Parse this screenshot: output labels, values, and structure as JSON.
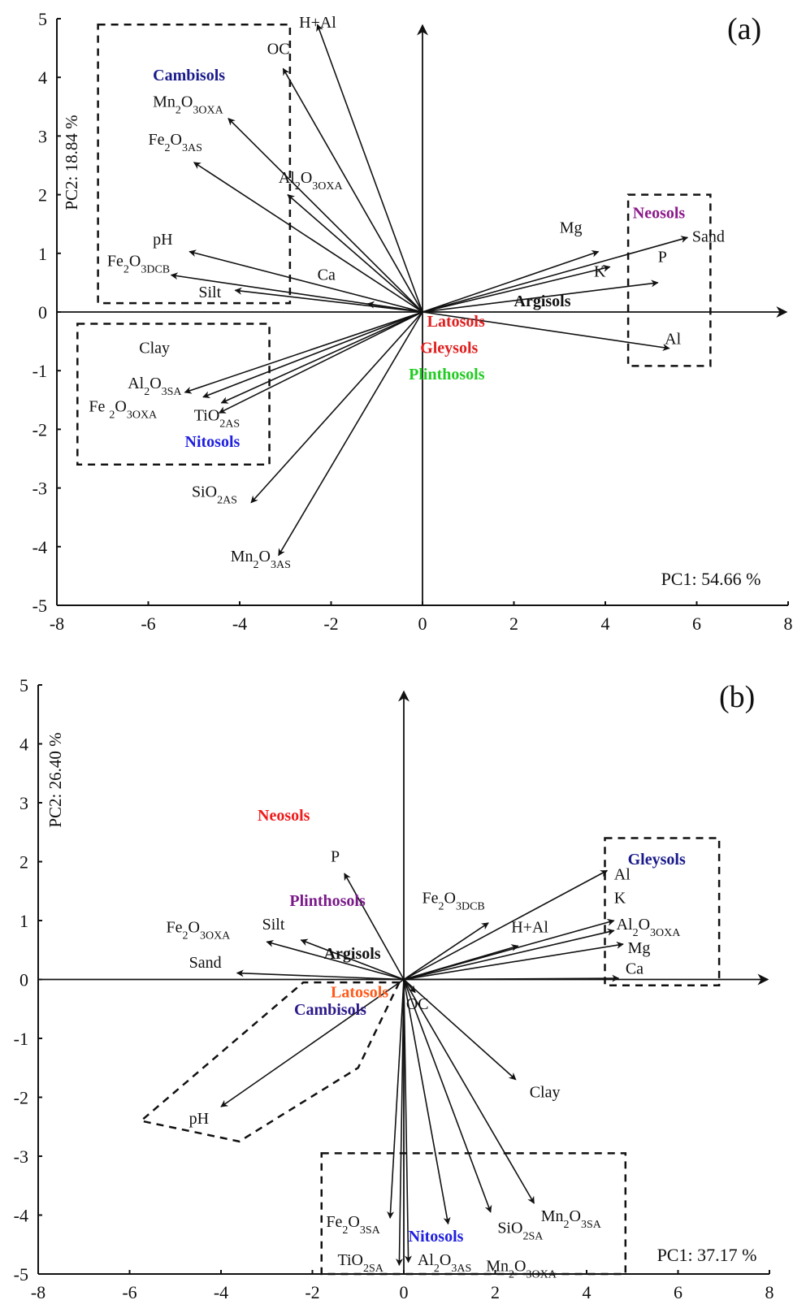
{
  "chart_data": [
    {
      "type": "scatter",
      "subtype": "pca-biplot",
      "panel_tag": "(a)",
      "title": "",
      "xlabel": "PC1: 54.66 %",
      "ylabel": "PC2: 18.84 %",
      "xlim": [
        -8,
        8
      ],
      "ylim": [
        -5,
        5
      ],
      "xticks": [
        "-8",
        "-6",
        "-4",
        "-2",
        "0",
        "2",
        "4",
        "6",
        "8"
      ],
      "yticks": [
        "5",
        "4",
        "3",
        "2",
        "1",
        "0",
        "-1",
        "-2",
        "-3",
        "-4",
        "-5"
      ],
      "grid": false,
      "vectors": [
        {
          "name": "H+Al",
          "sub": "",
          "x": -2.3,
          "y": 4.9
        },
        {
          "name": "OC",
          "sub": "",
          "x": -3.05,
          "y": 4.15
        },
        {
          "name": "Mn2O3",
          "sub": "OXA",
          "x": -4.25,
          "y": 3.3
        },
        {
          "name": "Fe2O3",
          "sub": "AS",
          "x": -5.0,
          "y": 2.55
        },
        {
          "name": "Al2O3",
          "sub": "OXA",
          "x": -2.95,
          "y": 2.0
        },
        {
          "name": "pH",
          "sub": "",
          "x": -5.1,
          "y": 1.03
        },
        {
          "name": "Fe2O3",
          "sub": "DCB",
          "x": -5.5,
          "y": 0.63
        },
        {
          "name": "Silt",
          "sub": "",
          "x": -4.1,
          "y": 0.37
        },
        {
          "name": "Ca",
          "sub": "",
          "x": -1.2,
          "y": 0.14
        },
        {
          "name": "Mg",
          "sub": "",
          "x": 3.85,
          "y": 1.03
        },
        {
          "name": "K",
          "sub": "",
          "x": 4.1,
          "y": 0.77
        },
        {
          "name": "Sand",
          "sub": "",
          "x": 5.8,
          "y": 1.27
        },
        {
          "name": "P",
          "sub": "",
          "x": 5.15,
          "y": 0.5
        },
        {
          "name": "Al",
          "sub": "",
          "x": 5.4,
          "y": -0.62
        },
        {
          "name": "Clay",
          "sub": "",
          "x": -4.4,
          "y": -1.55
        },
        {
          "name": "Al2O3",
          "sub": "SA",
          "x": -5.2,
          "y": -1.37
        },
        {
          "name": "Fe2O3",
          "sub": "OXA",
          "x": -4.8,
          "y": -1.45
        },
        {
          "name": "TiO2",
          "sub": "AS",
          "x": -4.45,
          "y": -1.72
        },
        {
          "name": "SiO2",
          "sub": "AS",
          "x": -3.75,
          "y": -3.25
        },
        {
          "name": "Mn2O3",
          "sub": "AS",
          "x": -3.15,
          "y": -4.15
        }
      ],
      "labels": [
        {
          "text": "H+Al",
          "x": -2.7,
          "y": 4.85
        },
        {
          "text": "OC",
          "x": -3.4,
          "y": 4.4
        },
        {
          "text": "Mn2O3",
          "sub": "OXA",
          "x": -5.9,
          "y": 3.5
        },
        {
          "text": "Fe2O3",
          "sub": "AS",
          "x": -6.0,
          "y": 2.85
        },
        {
          "text": "Al2O3",
          "sub": "OXA",
          "x": -3.15,
          "y": 2.2
        },
        {
          "text": "pH",
          "x": -5.9,
          "y": 1.15
        },
        {
          "text": "Fe2O3",
          "sub": "DCB",
          "x": -6.9,
          "y": 0.78
        },
        {
          "text": "Silt",
          "x": -4.9,
          "y": 0.25
        },
        {
          "text": "Ca",
          "x": -2.3,
          "y": 0.55
        },
        {
          "text": "Mg",
          "x": 3.0,
          "y": 1.35
        },
        {
          "text": "K",
          "x": 3.75,
          "y": 0.6
        },
        {
          "text": "Sand",
          "x": 5.9,
          "y": 1.2
        },
        {
          "text": "P",
          "x": 5.15,
          "y": 0.85
        },
        {
          "text": "Al",
          "x": 5.3,
          "y": -0.55
        },
        {
          "text": "Clay",
          "x": -6.2,
          "y": -0.7
        },
        {
          "text": "Al2O3",
          "sub": "SA",
          "x": -6.45,
          "y": -1.3
        },
        {
          "text": "Fe 2O3",
          "sub": "OXA",
          "x": -7.3,
          "y": -1.7
        },
        {
          "text": "TiO2",
          "sub": "AS",
          "x": -5.0,
          "y": -1.85
        }
      ],
      "soil_groups": [
        {
          "name": "Cambisols",
          "color": "#1a1a8c",
          "x": -5.9,
          "y": 3.95
        },
        {
          "name": "Neosols",
          "color": "#8b1a8b",
          "x": 4.6,
          "y": 1.6
        },
        {
          "name": "Argisols",
          "color": "#111111",
          "x": 2.0,
          "y": 0.1
        },
        {
          "name": "Latosols",
          "color": "#e02020",
          "x": 0.1,
          "y": -0.25
        },
        {
          "name": "Gleysols",
          "color": "#e02020",
          "x": -0.05,
          "y": -0.7
        },
        {
          "name": "Plinthosols",
          "color": "#22cc22",
          "x": -0.3,
          "y": -1.15
        },
        {
          "name": "Nitosols",
          "color": "#2020e0",
          "x": -5.2,
          "y": -2.3
        }
      ],
      "extra_var_labels": [
        {
          "text": "SiO2",
          "sub": "AS",
          "x": -5.05,
          "y": -3.15
        },
        {
          "text": "Mn2O3",
          "sub": "AS",
          "x": -4.2,
          "y": -4.25
        }
      ],
      "dashed_groups": [
        {
          "points": [
            [
              -7.1,
              4.9
            ],
            [
              -2.9,
              4.9
            ],
            [
              -2.9,
              0.15
            ],
            [
              -7.1,
              0.15
            ]
          ]
        },
        {
          "points": [
            [
              -7.55,
              -0.2
            ],
            [
              -3.35,
              -0.2
            ],
            [
              -3.35,
              -2.6
            ],
            [
              -7.55,
              -2.6
            ]
          ]
        },
        {
          "points": [
            [
              4.5,
              2.0
            ],
            [
              6.3,
              2.0
            ],
            [
              6.3,
              -0.92
            ],
            [
              4.5,
              -0.92
            ]
          ]
        }
      ]
    },
    {
      "type": "scatter",
      "subtype": "pca-biplot",
      "panel_tag": "(b)",
      "title": "",
      "xlabel": "PC1: 37.17 %",
      "ylabel": "PC2: 26.40 %",
      "xlim": [
        -8,
        8
      ],
      "ylim": [
        -5,
        5
      ],
      "xticks": [
        "-8",
        "-6",
        "-4",
        "-2",
        "0",
        "2",
        "4",
        "6",
        "8"
      ],
      "yticks": [
        "5",
        "4",
        "3",
        "2",
        "1",
        "0",
        "-1",
        "-2",
        "-3",
        "-4",
        "-5"
      ],
      "grid": false,
      "vectors": [
        {
          "name": "P",
          "sub": "",
          "x": -1.3,
          "y": 1.8
        },
        {
          "name": "Silt",
          "sub": "",
          "x": -2.25,
          "y": 0.67
        },
        {
          "name": "Fe2O3",
          "sub": "OXA",
          "x": -3.0,
          "y": 0.64
        },
        {
          "name": "Sand",
          "sub": "",
          "x": -3.65,
          "y": 0.11
        },
        {
          "name": "pH",
          "sub": "",
          "x": -4.0,
          "y": -2.16
        },
        {
          "name": "Fe2O3",
          "sub": "DCB",
          "x": 1.85,
          "y": 0.96
        },
        {
          "name": "Al",
          "sub": "",
          "x": 4.45,
          "y": 1.85
        },
        {
          "name": "Al2O3",
          "sub": "OXA",
          "x": 4.6,
          "y": 1.0
        },
        {
          "name": "H+Al",
          "sub": "",
          "x": 2.5,
          "y": 0.57
        },
        {
          "name": "K",
          "sub": "",
          "x": 4.6,
          "y": 0.83
        },
        {
          "name": "Mg",
          "sub": "",
          "x": 4.8,
          "y": 0.6
        },
        {
          "name": "Ca",
          "sub": "",
          "x": 4.7,
          "y": 0.02
        },
        {
          "name": "OC",
          "sub": "",
          "x": 0.25,
          "y": -0.22
        },
        {
          "name": "Clay",
          "sub": "",
          "x": 2.45,
          "y": -1.7
        },
        {
          "name": "Mn2O3",
          "sub": "SA",
          "x": 2.85,
          "y": -3.8
        },
        {
          "name": "SiO2",
          "sub": "SA",
          "x": 1.9,
          "y": -3.95
        },
        {
          "name": "Mn2O3",
          "sub": "OXA",
          "x": 0.97,
          "y": -4.15
        },
        {
          "name": "Fe2O3",
          "sub": "SA",
          "x": -0.3,
          "y": -4.05
        },
        {
          "name": "TiO2",
          "sub": "SA",
          "x": -0.1,
          "y": -4.85
        },
        {
          "name": "Al2O3",
          "sub": "AS",
          "x": 0.1,
          "y": -4.8
        }
      ],
      "labels": [
        {
          "text": "P",
          "x": -1.6,
          "y": 2.0
        },
        {
          "text": "Silt",
          "x": -3.1,
          "y": 0.85
        },
        {
          "text": "Fe2O3",
          "sub": "OXA",
          "x": -5.2,
          "y": 0.8
        },
        {
          "text": "Sand",
          "x": -4.7,
          "y": 0.2
        },
        {
          "text": "pH",
          "x": -4.7,
          "y": -2.45
        },
        {
          "text": "Fe2O3",
          "sub": "DCB",
          "x": 0.4,
          "y": 1.3
        },
        {
          "text": "Al",
          "x": 4.6,
          "y": 1.7
        },
        {
          "text": "K",
          "x": 4.6,
          "y": 1.3
        },
        {
          "text": "Al2O3",
          "sub": "OXA",
          "x": 4.65,
          "y": 0.85
        },
        {
          "text": "H+Al",
          "x": 2.35,
          "y": 0.8
        },
        {
          "text": "Mg",
          "x": 4.9,
          "y": 0.45
        },
        {
          "text": "Ca",
          "x": 4.85,
          "y": 0.1
        },
        {
          "text": "OC",
          "x": 0.05,
          "y": -0.5
        },
        {
          "text": "Clay",
          "x": 2.75,
          "y": -2.0
        },
        {
          "text": "Mn2O3",
          "sub": "SA",
          "x": 3.0,
          "y": -4.1
        },
        {
          "text": "SiO2",
          "sub": "SA",
          "x": 2.05,
          "y": -4.3
        },
        {
          "text": "Mn2O3",
          "sub": "OXA",
          "x": 1.8,
          "y": -4.95
        },
        {
          "text": "Fe2O3",
          "sub": "SA",
          "x": -1.7,
          "y": -4.2
        },
        {
          "text": "TiO2",
          "sub": "SA",
          "x": -1.45,
          "y": -4.85
        },
        {
          "text": "Al2O3",
          "sub": "AS",
          "x": 0.3,
          "y": -4.85
        }
      ],
      "soil_groups": [
        {
          "name": "Neosols",
          "color": "#ee1c1c",
          "x": -3.2,
          "y": 2.7
        },
        {
          "name": "Plinthosols",
          "color": "#7a1a8a",
          "x": -2.5,
          "y": 1.25
        },
        {
          "name": "Argisols",
          "color": "#111111",
          "x": -1.75,
          "y": 0.35
        },
        {
          "name": "Latosols",
          "color": "#ff5a1a",
          "x": -1.6,
          "y": -0.3
        },
        {
          "name": "Cambisols",
          "color": "#2a1a8a",
          "x": -2.4,
          "y": -0.6
        },
        {
          "name": "Gleysols",
          "color": "#1a1a8c",
          "x": 4.9,
          "y": 1.95
        },
        {
          "name": "Nitosols",
          "color": "#2020e0",
          "x": 0.1,
          "y": -4.45
        }
      ],
      "dashed_groups": [
        {
          "points": [
            [
              4.4,
              2.4
            ],
            [
              6.9,
              2.4
            ],
            [
              6.9,
              -0.1
            ],
            [
              4.4,
              -0.1
            ]
          ]
        },
        {
          "points": [
            [
              -1.8,
              -2.95
            ],
            [
              4.85,
              -2.95
            ],
            [
              4.85,
              -5.0
            ],
            [
              -1.8,
              -5.0
            ]
          ]
        },
        {
          "points": [
            [
              -0.1,
              -0.05
            ],
            [
              -2.2,
              -0.05
            ],
            [
              -5.75,
              -2.4
            ],
            [
              -3.6,
              -2.75
            ],
            [
              -1.0,
              -1.5
            ]
          ]
        }
      ]
    }
  ]
}
